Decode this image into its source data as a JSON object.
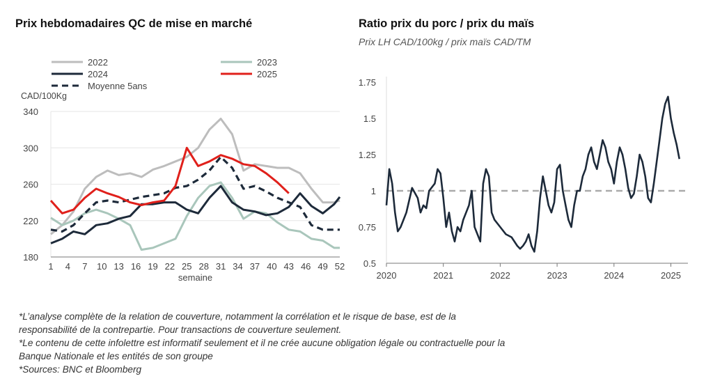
{
  "left": {
    "title": "Prix hebdomadaires QC de mise en marché",
    "chart_data": {
      "type": "line",
      "title": "Prix hebdomadaires QC de mise en marché",
      "ylabel": "CAD/100Kg",
      "xlabel": "semaine",
      "ylim": [
        180,
        340
      ],
      "yticks": [
        180,
        220,
        260,
        300,
        340
      ],
      "xlim": [
        1,
        52
      ],
      "xticks": [
        1,
        4,
        7,
        10,
        13,
        16,
        19,
        22,
        25,
        28,
        31,
        34,
        37,
        40,
        43,
        46,
        49,
        52
      ],
      "legend": [
        "2022",
        "2023",
        "2024",
        "2025",
        "Moyenne 5ans"
      ],
      "x": [
        1,
        3,
        5,
        7,
        9,
        11,
        13,
        15,
        17,
        19,
        21,
        23,
        25,
        27,
        29,
        31,
        33,
        35,
        37,
        39,
        41,
        43,
        45,
        47,
        49,
        51,
        52
      ],
      "series": [
        {
          "name": "2022",
          "color": "#bdbdbd",
          "dash": false,
          "values": [
            205,
            215,
            230,
            255,
            268,
            275,
            270,
            272,
            268,
            276,
            280,
            285,
            290,
            300,
            320,
            332,
            315,
            275,
            282,
            280,
            278,
            278,
            272,
            255,
            240,
            240,
            242
          ]
        },
        {
          "name": "2023",
          "color": "#a9c6bb",
          "dash": false,
          "values": [
            223,
            215,
            220,
            228,
            232,
            228,
            222,
            215,
            188,
            190,
            195,
            200,
            225,
            245,
            258,
            262,
            245,
            222,
            230,
            228,
            218,
            210,
            208,
            200,
            198,
            190,
            190
          ]
        },
        {
          "name": "2024",
          "color": "#1d2a3a",
          "dash": false,
          "values": [
            195,
            200,
            208,
            205,
            215,
            217,
            222,
            225,
            238,
            238,
            240,
            240,
            232,
            228,
            245,
            258,
            240,
            232,
            230,
            226,
            228,
            235,
            250,
            236,
            228,
            238,
            246
          ]
        },
        {
          "name": "2025",
          "color": "#e0201b",
          "dash": false,
          "values": [
            242,
            228,
            232,
            245,
            255,
            250,
            246,
            240,
            237,
            240,
            242,
            258,
            300,
            280,
            285,
            292,
            288,
            282,
            280,
            272,
            262,
            250,
            null,
            null,
            null,
            null,
            null
          ]
        },
        {
          "name": "Moyenne 5ans",
          "color": "#1d2a3a",
          "dash": true,
          "values": [
            210,
            208,
            215,
            228,
            240,
            242,
            240,
            243,
            246,
            248,
            250,
            256,
            258,
            265,
            275,
            290,
            278,
            255,
            258,
            252,
            245,
            240,
            235,
            215,
            210,
            210,
            210
          ]
        }
      ]
    }
  },
  "right": {
    "title": "Ratio prix du porc / prix du maïs",
    "subtitle": "Prix LH CAD/100kg / prix maïs CAD/TM",
    "chart_data": {
      "type": "line",
      "title": "Ratio prix du porc / prix du maïs",
      "subtitle": "Prix LH CAD/100kg / prix maïs CAD/TM",
      "ylim": [
        0.5,
        1.75
      ],
      "yticks": [
        "0.5",
        "0.75",
        "1",
        "1.25",
        "1.5",
        "1.75"
      ],
      "xlim": [
        2020.0,
        2025.3
      ],
      "xticks": [
        "2020",
        "2021",
        "2022",
        "2023",
        "2024",
        "2025"
      ],
      "reference_line": 1.0,
      "series": [
        {
          "name": "Ratio",
          "color": "#1d2a3a",
          "x": [
            2020.0,
            2020.05,
            2020.1,
            2020.15,
            2020.2,
            2020.25,
            2020.3,
            2020.35,
            2020.45,
            2020.55,
            2020.6,
            2020.65,
            2020.7,
            2020.75,
            2020.85,
            2020.9,
            2020.95,
            2021.0,
            2021.05,
            2021.1,
            2021.15,
            2021.2,
            2021.25,
            2021.3,
            2021.35,
            2021.45,
            2021.5,
            2021.55,
            2021.6,
            2021.65,
            2021.7,
            2021.75,
            2021.8,
            2021.85,
            2021.9,
            2022.0,
            2022.1,
            2022.2,
            2022.3,
            2022.35,
            2022.4,
            2022.45,
            2022.5,
            2022.55,
            2022.6,
            2022.65,
            2022.7,
            2022.75,
            2022.8,
            2022.85,
            2022.9,
            2022.95,
            2023.0,
            2023.05,
            2023.1,
            2023.15,
            2023.2,
            2023.25,
            2023.3,
            2023.35,
            2023.4,
            2023.45,
            2023.5,
            2023.55,
            2023.6,
            2023.65,
            2023.7,
            2023.75,
            2023.8,
            2023.85,
            2023.9,
            2023.95,
            2024.0,
            2024.05,
            2024.1,
            2024.15,
            2024.2,
            2024.25,
            2024.3,
            2024.35,
            2024.4,
            2024.45,
            2024.5,
            2024.55,
            2024.6,
            2024.65,
            2024.7,
            2024.75,
            2024.8,
            2024.85,
            2024.9,
            2024.95,
            2025.0,
            2025.05,
            2025.1,
            2025.15
          ],
          "values": [
            0.9,
            1.15,
            1.05,
            0.85,
            0.72,
            0.75,
            0.8,
            0.85,
            1.02,
            0.95,
            0.85,
            0.9,
            0.88,
            1.0,
            1.05,
            1.15,
            1.12,
            0.95,
            0.75,
            0.85,
            0.72,
            0.65,
            0.75,
            0.72,
            0.8,
            0.9,
            1.0,
            0.75,
            0.7,
            0.65,
            1.05,
            1.15,
            1.1,
            0.85,
            0.8,
            0.75,
            0.7,
            0.68,
            0.62,
            0.6,
            0.62,
            0.65,
            0.7,
            0.62,
            0.58,
            0.72,
            0.95,
            1.1,
            1.0,
            0.9,
            0.85,
            0.92,
            1.15,
            1.18,
            1.0,
            0.9,
            0.8,
            0.75,
            0.9,
            1.0,
            1.0,
            1.1,
            1.15,
            1.25,
            1.3,
            1.2,
            1.15,
            1.25,
            1.35,
            1.3,
            1.2,
            1.15,
            1.05,
            1.2,
            1.3,
            1.25,
            1.15,
            1.02,
            0.95,
            0.98,
            1.1,
            1.25,
            1.2,
            1.1,
            0.95,
            0.92,
            1.05,
            1.2,
            1.35,
            1.5,
            1.6,
            1.65,
            1.5,
            1.4,
            1.32,
            1.22
          ]
        }
      ]
    }
  },
  "footnotes": [
    "*L’analyse complète de la relation de couverture, notamment la corrélation et le risque de base, est de la",
    "responsabilité de la contrepartie. Pour transactions de couverture seulement.",
    "*Le contenu de cette infolettre est informatif seulement et il ne crée aucune obligation légale ou contractuelle pour la",
    "Banque Nationale et les entités de son groupe",
    "*Sources: BNC et Bloomberg"
  ]
}
